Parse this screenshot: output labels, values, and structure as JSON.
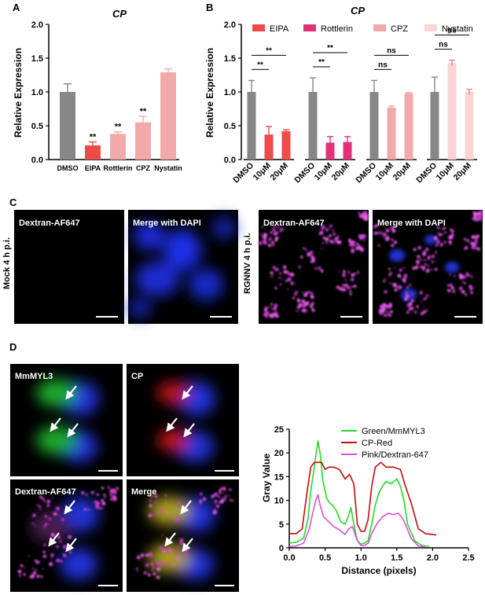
{
  "panel_letters": {
    "a": "A",
    "b": "B",
    "c": "C",
    "d": "D"
  },
  "colors": {
    "dmso": "#878787",
    "eipa": "#f04a4a",
    "rottlerin": "#e3307a",
    "cpz": "#f2a9a9",
    "nystatin": "#fbd5d5",
    "green": "#25d92b",
    "red": "#c40c0c",
    "pink": "#d852d8"
  },
  "panel_c": {
    "tiles": [
      "Dextran-AF647",
      "Merge with DAPI",
      "Dextran-AF647",
      "Merge with DAPI"
    ],
    "row_labels": [
      "Mock 4 h p.i.",
      "RGNNV 4 h p.i."
    ]
  },
  "panel_d": {
    "tiles": [
      "MmMYL3",
      "CP",
      "Dextran-AF647",
      "Merge"
    ]
  },
  "chart_data": [
    {
      "id": "A",
      "type": "bar",
      "title": "CP",
      "ylabel": "Relative Expression",
      "ylim": [
        0,
        2.0
      ],
      "yticks": [
        "0.0",
        "0.5",
        "1.0",
        "1.5",
        "2.0"
      ],
      "categories": [
        "DMSO",
        "EIPA",
        "Rottlerin",
        "CPZ",
        "Nystatin"
      ],
      "values": [
        1.0,
        0.21,
        0.38,
        0.55,
        1.29
      ],
      "errors": [
        0.12,
        0.05,
        0.03,
        0.09,
        0.05
      ],
      "annotations": [
        "",
        "**",
        "**",
        "**",
        ""
      ]
    },
    {
      "id": "B",
      "type": "bar",
      "title": "CP",
      "ylabel": "Relative Expression",
      "ylim": [
        0,
        2.0
      ],
      "yticks": [
        "0.0",
        "0.5",
        "1.0",
        "1.5",
        "2.0"
      ],
      "legend": [
        "EIPA",
        "Rottlerin",
        "CPZ",
        "Nystatin"
      ],
      "groups": [
        {
          "name": "EIPA",
          "categories": [
            "DMSO",
            "10μM",
            "20μM"
          ],
          "values": [
            1.0,
            0.37,
            0.42
          ],
          "errors": [
            0.17,
            0.12,
            0.02
          ],
          "annotations": [
            "**",
            "**"
          ]
        },
        {
          "name": "Rottlerin",
          "categories": [
            "DMSO",
            "10μM",
            "20μM"
          ],
          "values": [
            1.0,
            0.25,
            0.26
          ],
          "errors": [
            0.21,
            0.09,
            0.08
          ],
          "annotations": [
            "**",
            "**"
          ]
        },
        {
          "name": "CPZ",
          "categories": [
            "DMSO",
            "10μM",
            "20μM"
          ],
          "values": [
            1.0,
            0.77,
            0.98
          ],
          "errors": [
            0.17,
            0.02,
            0.01
          ],
          "annotations": [
            "ns",
            "ns"
          ]
        },
        {
          "name": "Nystatin",
          "categories": [
            "DMSO",
            "10μM",
            "20μM"
          ],
          "values": [
            1.0,
            1.43,
            1.0
          ],
          "errors": [
            0.22,
            0.04,
            0.04
          ],
          "annotations": [
            "ns",
            "ns"
          ]
        }
      ]
    },
    {
      "id": "D",
      "type": "line",
      "xlabel": "Distance (pixels)",
      "ylabel": "Gray Value",
      "xlim": [
        0,
        2.5
      ],
      "ylim": [
        0,
        25
      ],
      "xticks": [
        "0.0",
        "0.5",
        "1.0",
        "1.5",
        "2.0",
        "2.5"
      ],
      "yticks": [
        "0",
        "5",
        "10",
        "15",
        "20",
        "25"
      ],
      "series": [
        {
          "name": "Green/MmMYL3",
          "x": [
            0,
            0.1,
            0.2,
            0.26,
            0.3,
            0.35,
            0.4,
            0.43,
            0.47,
            0.52,
            0.56,
            0.6,
            0.65,
            0.72,
            0.78,
            0.82,
            0.86,
            0.9,
            0.95,
            1.0,
            1.05,
            1.1,
            1.15,
            1.2,
            1.25,
            1.3,
            1.35,
            1.42,
            1.5,
            1.55,
            1.6,
            1.65,
            1.75,
            1.85,
            1.95
          ],
          "y": [
            1,
            1.2,
            2,
            6,
            12,
            17,
            22.5,
            20,
            14,
            10.5,
            9.5,
            9,
            8,
            5.5,
            5,
            6.5,
            8.5,
            5,
            1.5,
            0.8,
            1,
            1.5,
            5,
            9,
            11.5,
            13,
            14,
            13.5,
            14.5,
            13,
            10,
            5,
            1.5,
            0.5,
            0.3
          ]
        },
        {
          "name": "CP-Red",
          "x": [
            0,
            0.1,
            0.18,
            0.25,
            0.3,
            0.35,
            0.4,
            0.45,
            0.5,
            0.55,
            0.62,
            0.7,
            0.78,
            0.84,
            0.9,
            0.95,
            1.0,
            1.05,
            1.1,
            1.15,
            1.2,
            1.28,
            1.35,
            1.45,
            1.55,
            1.62,
            1.7,
            1.8,
            1.9,
            2.0,
            2.05
          ],
          "y": [
            3,
            3,
            4,
            12,
            17,
            18,
            18,
            18,
            16.5,
            17,
            17,
            16.5,
            14.5,
            15.5,
            13.5,
            5,
            3.5,
            3.5,
            6,
            13,
            17,
            18,
            17,
            17,
            16.5,
            13,
            9.5,
            4,
            3,
            2.8,
            2.7
          ]
        },
        {
          "name": "Pink/Dextran-647",
          "x": [
            0,
            0.1,
            0.2,
            0.28,
            0.33,
            0.37,
            0.4,
            0.43,
            0.48,
            0.55,
            0.62,
            0.7,
            0.78,
            0.83,
            0.88,
            0.95,
            1.0,
            1.05,
            1.1,
            1.15,
            1.22,
            1.3,
            1.38,
            1.45,
            1.52,
            1.58,
            1.62,
            1.7,
            1.8,
            1.9
          ],
          "y": [
            0.3,
            0.4,
            1,
            4,
            7.5,
            10,
            11.2,
            9,
            6.5,
            5.5,
            4.5,
            3.8,
            2.8,
            4,
            4.5,
            1.5,
            0.5,
            0.5,
            1,
            3,
            5,
            6.5,
            7.3,
            7,
            7.3,
            6.2,
            5,
            2,
            0.4,
            0.2
          ]
        }
      ]
    }
  ]
}
